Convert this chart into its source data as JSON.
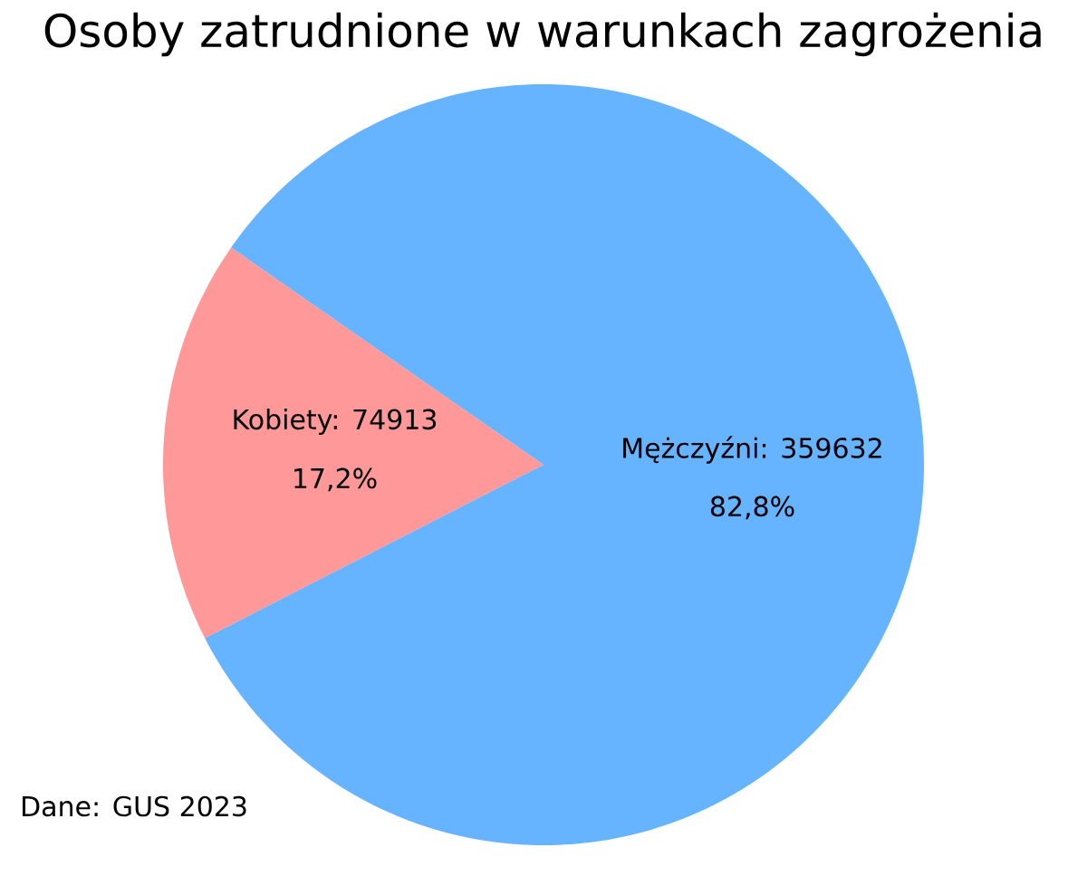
{
  "chart_data": {
    "type": "pie",
    "title": "Osoby zatrudnione w warunkach zagrożenia",
    "categories": [
      "Kobiety: 74913",
      "Mężczyźni: 359632"
    ],
    "values": [
      17.2,
      82.8
    ],
    "colors": [
      "#ff9999",
      "#66b3ff"
    ],
    "value_labels": [
      "17,2%",
      "82,8%"
    ],
    "annotations": [
      "Dane: GUS 2023"
    ]
  }
}
